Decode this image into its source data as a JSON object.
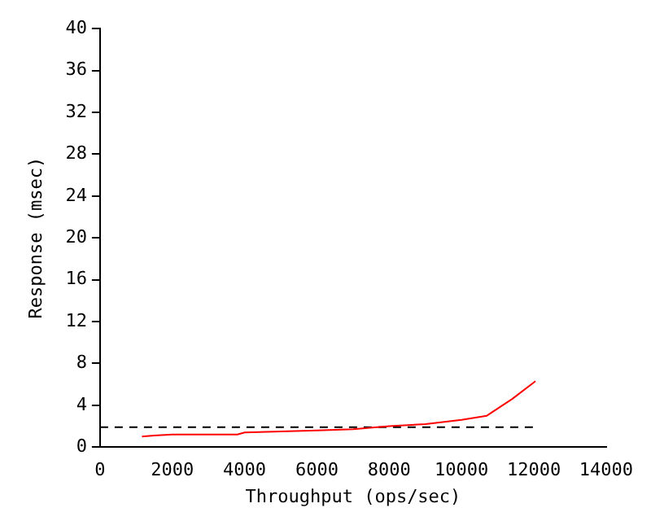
{
  "chart_data": {
    "type": "line",
    "xlabel": "Throughput (ops/sec)",
    "ylabel": "Response (msec)",
    "xlim": [
      0,
      14000
    ],
    "xticks": [
      0,
      2000,
      4000,
      6000,
      8000,
      10000,
      12000,
      14000
    ],
    "ylim": [
      0,
      40
    ],
    "yticks": [
      0,
      4,
      8,
      12,
      16,
      20,
      24,
      28,
      32,
      36,
      40
    ],
    "grid": false,
    "legend": false,
    "marker": "none",
    "series": [
      {
        "color": "#ff0000",
        "line_style": "solid",
        "x": [
          1160,
          1500,
          2000,
          3800,
          4000,
          6000,
          7000,
          8000,
          9000,
          10000,
          10700,
          11400,
          12045
        ],
        "values": [
          1.0,
          1.1,
          1.2,
          1.2,
          1.4,
          1.6,
          1.7,
          2.0,
          2.2,
          2.6,
          3.0,
          4.6,
          6.3
        ]
      },
      {
        "color": "#000000",
        "line_style": "dashed",
        "x": [
          0,
          12000
        ],
        "values": [
          1.9,
          1.9
        ]
      }
    ]
  }
}
